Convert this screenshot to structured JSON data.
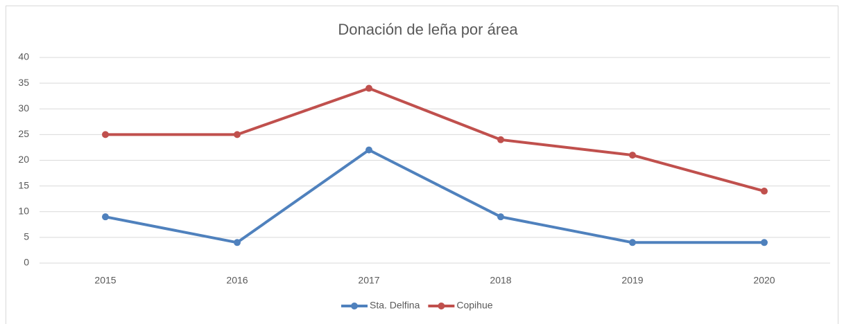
{
  "chart_data": {
    "type": "line",
    "title": "Donación de leña por área",
    "categories": [
      "2015",
      "2016",
      "2017",
      "2018",
      "2019",
      "2020"
    ],
    "series": [
      {
        "name": "Sta. Delfina",
        "color": "#4f81bd",
        "values": [
          9,
          4,
          22,
          9,
          4,
          4
        ]
      },
      {
        "name": "Copihue",
        "color": "#c0504d",
        "values": [
          25,
          25,
          34,
          24,
          21,
          14
        ]
      }
    ],
    "ylim": [
      0,
      40
    ],
    "yticks": [
      0,
      5,
      10,
      15,
      20,
      25,
      30,
      35,
      40
    ],
    "grid": true,
    "legend": "bottom"
  }
}
